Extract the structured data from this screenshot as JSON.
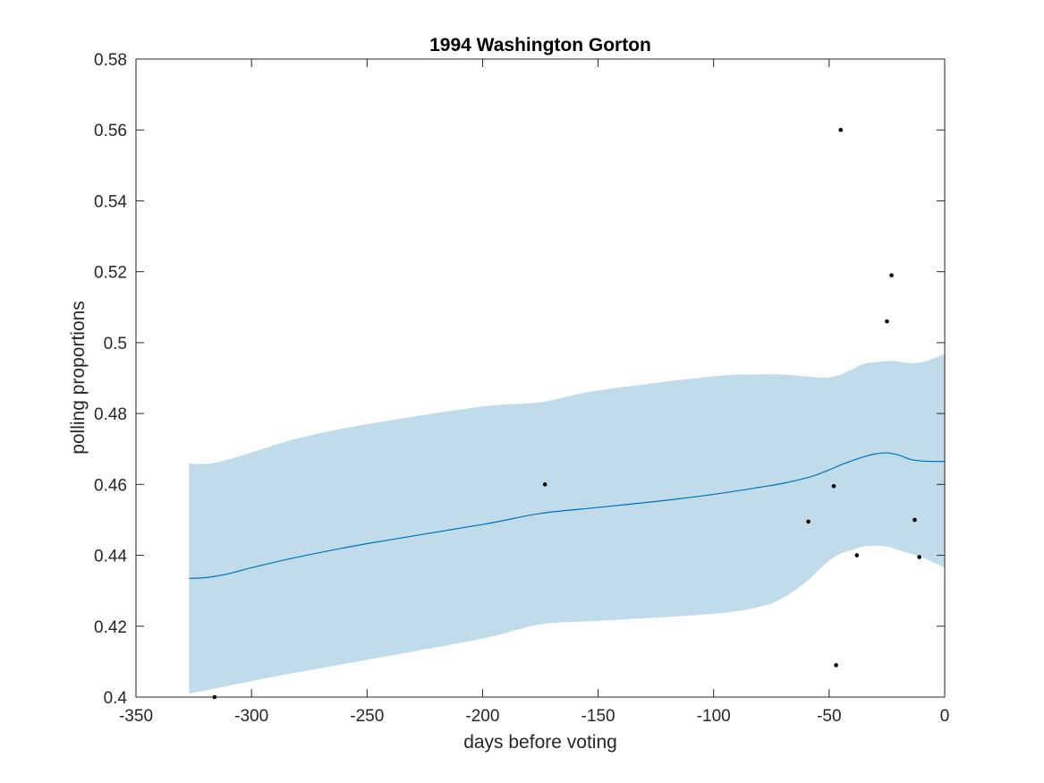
{
  "chart_data": {
    "type": "line",
    "title": "1994 Washington Gorton",
    "xlabel": "days before voting",
    "ylabel": "polling proportions",
    "xlim": [
      -350,
      0
    ],
    "ylim": [
      0.4,
      0.58
    ],
    "xticks": [
      -350,
      -300,
      -250,
      -200,
      -150,
      -100,
      -50,
      0
    ],
    "xtick_labels": [
      "-350",
      "-300",
      "-250",
      "-200",
      "-150",
      "-100",
      "-50",
      "0"
    ],
    "yticks": [
      0.4,
      0.42,
      0.44,
      0.46,
      0.48,
      0.5,
      0.52,
      0.54,
      0.56,
      0.58
    ],
    "ytick_labels": [
      "0.4",
      "0.42",
      "0.44",
      "0.46",
      "0.48",
      "0.5",
      "0.52",
      "0.54",
      "0.56",
      "0.58"
    ],
    "grid": false,
    "legend": "none",
    "colors": {
      "band": "#c0dcea",
      "line": "#0072bd",
      "points": "#000000",
      "axes": "#262626"
    },
    "series": [
      {
        "kind": "band",
        "x": [
          -327,
          -323,
          -315,
          -300,
          -280,
          -250,
          -200,
          -175,
          -150,
          -100,
          -80,
          -70,
          -60,
          -55,
          -50,
          -45,
          -40,
          -35,
          -30,
          -25,
          -20,
          -15,
          -10,
          -5,
          0
        ],
        "lower": [
          0.401,
          0.4015,
          0.4025,
          0.4045,
          0.407,
          0.4105,
          0.4165,
          0.4205,
          0.4215,
          0.4235,
          0.4255,
          0.428,
          0.4325,
          0.4355,
          0.4385,
          0.4405,
          0.4415,
          0.4425,
          0.4427,
          0.4425,
          0.4415,
          0.4405,
          0.4395,
          0.438,
          0.4365
        ],
        "upper": [
          0.466,
          0.4658,
          0.4662,
          0.469,
          0.473,
          0.477,
          0.482,
          0.4832,
          0.4865,
          0.4905,
          0.491,
          0.491,
          0.4905,
          0.4902,
          0.4902,
          0.491,
          0.4925,
          0.494,
          0.4945,
          0.4948,
          0.4947,
          0.4942,
          0.4945,
          0.4955,
          0.4968
        ]
      },
      {
        "kind": "line",
        "x": [
          -327,
          -320,
          -310,
          -300,
          -280,
          -250,
          -200,
          -175,
          -150,
          -125,
          -100,
          -80,
          -70,
          -60,
          -55,
          -50,
          -45,
          -40,
          -35,
          -30,
          -25,
          -20,
          -15,
          -10,
          -5,
          0
        ],
        "y": [
          0.4335,
          0.4337,
          0.4348,
          0.4365,
          0.4395,
          0.4433,
          0.4487,
          0.4518,
          0.4535,
          0.4552,
          0.4572,
          0.4592,
          0.4603,
          0.4618,
          0.4628,
          0.4641,
          0.4655,
          0.4667,
          0.4678,
          0.4686,
          0.4689,
          0.4683,
          0.4671,
          0.4666,
          0.4665,
          0.4665
        ]
      },
      {
        "kind": "scatter",
        "x": [
          -316,
          -173,
          -59,
          -48,
          -47,
          -45,
          -38,
          -25,
          -23,
          -13,
          -11
        ],
        "y": [
          0.4,
          0.46,
          0.4495,
          0.4595,
          0.409,
          0.56,
          0.44,
          0.506,
          0.519,
          0.45,
          0.4395
        ]
      }
    ]
  }
}
